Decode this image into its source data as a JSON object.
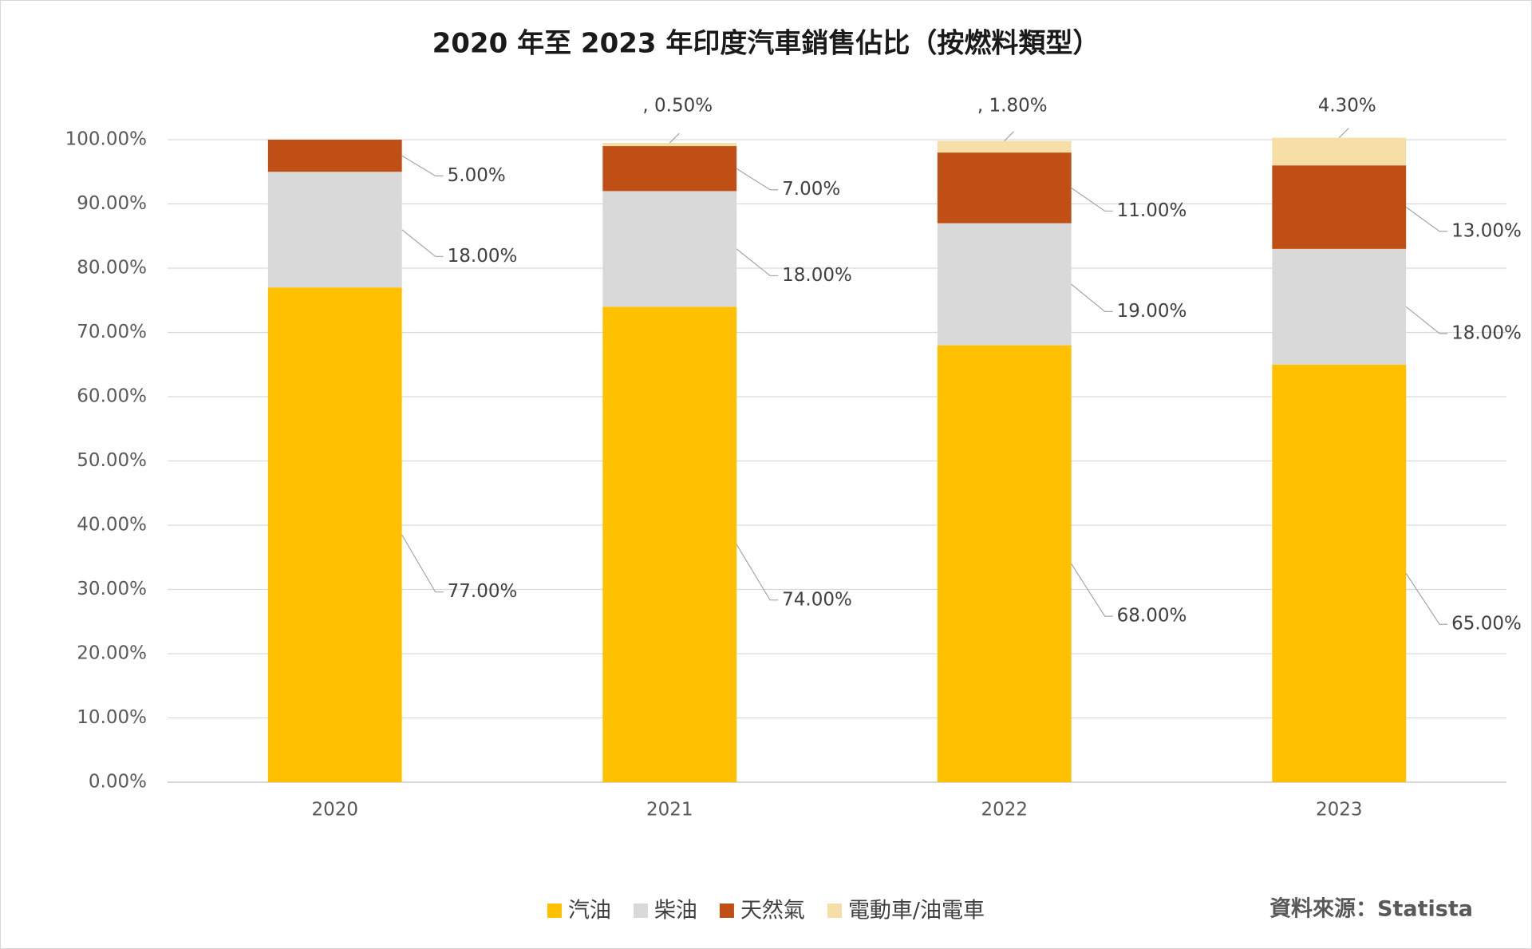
{
  "chart_data": {
    "type": "stacked_bar",
    "title": "2020 年至 2023 年印度汽車銷售佔比（按燃料類型）",
    "source": "資料來源：Statista",
    "categories": [
      "2020",
      "2021",
      "2022",
      "2023"
    ],
    "series": [
      {
        "name": "汽油",
        "color": "#FFC000",
        "values": [
          77,
          74,
          68,
          65
        ],
        "value_labels": [
          "77.00%",
          "74.00%",
          "68.00%",
          "65.00%"
        ]
      },
      {
        "name": "柴油",
        "color": "#D9D9D9",
        "values": [
          18,
          18,
          19,
          18
        ],
        "value_labels": [
          "18.00%",
          "18.00%",
          "19.00%",
          "18.00%"
        ]
      },
      {
        "name": "天然氣",
        "color": "#C04F15",
        "values": [
          5,
          7,
          11,
          13
        ],
        "value_labels": [
          "5.00%",
          "7.00%",
          "11.00%",
          "13.00%"
        ]
      },
      {
        "name": "電動車/油電車",
        "color": "#F5DFA6",
        "values": [
          null,
          0.5,
          1.8,
          4.3
        ],
        "value_labels": [
          null,
          ", 0.50%",
          ", 1.80%",
          "4.30%"
        ]
      }
    ],
    "ylim": [
      0,
      100
    ],
    "yticks": [
      {
        "value": 0,
        "label": "0.00%"
      },
      {
        "value": 10,
        "label": "10.00%"
      },
      {
        "value": 20,
        "label": "20.00%"
      },
      {
        "value": 30,
        "label": "30.00%"
      },
      {
        "value": 40,
        "label": "40.00%"
      },
      {
        "value": 50,
        "label": "50.00%"
      },
      {
        "value": 60,
        "label": "60.00%"
      },
      {
        "value": 70,
        "label": "70.00%"
      },
      {
        "value": 80,
        "label": "80.00%"
      },
      {
        "value": 90,
        "label": "90.00%"
      },
      {
        "value": 100,
        "label": "100.00%"
      }
    ],
    "grid": true,
    "legend": "bottom"
  }
}
